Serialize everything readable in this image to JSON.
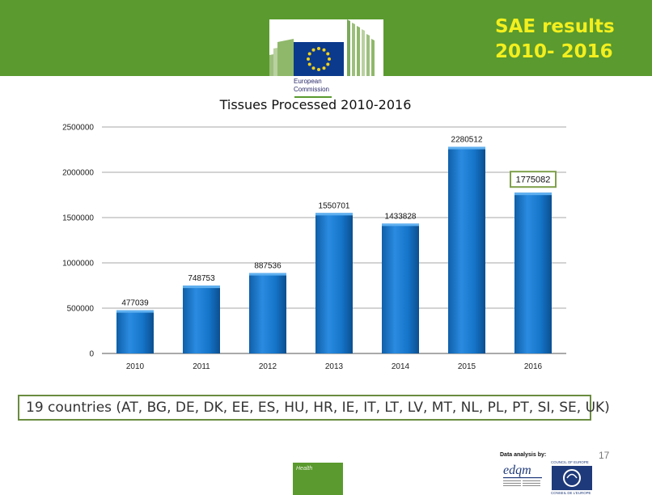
{
  "header": {
    "title_line1": "SAE results",
    "title_line2": "2010- 2016"
  },
  "logo": {
    "line1": "European",
    "line2": "Commission"
  },
  "chart_data": {
    "type": "bar",
    "title": "Tissues Processed  2010-2016",
    "categories": [
      "2010",
      "2011",
      "2012",
      "2013",
      "2014",
      "2015",
      "2016"
    ],
    "values": [
      477039,
      748753,
      887536,
      1550701,
      1433828,
      2280512,
      1775082
    ],
    "value_labels": [
      "477039",
      "748753",
      "887536",
      "1550701",
      "1433828",
      "2280512",
      "1775082"
    ],
    "ylim": [
      0,
      2500000
    ],
    "yticks": [
      "0",
      "500000",
      "1000000",
      "1500000",
      "2000000",
      "2500000"
    ],
    "grid": true,
    "legend": "none",
    "bar_color": "#1575c9",
    "highlighted_label_index": 6
  },
  "countries_text": "19 countries (AT, BG, DE, DK, EE, ES, HU, HR, IE, IT, LT, LV, MT, NL, PL, PT, SI, SE, UK)",
  "page_number": "17",
  "footer": {
    "health_label": "Health",
    "data_analysis": "Data analysis by:",
    "edqm_label": "edqm",
    "coe_label": "COUNCIL OF EUROPE",
    "coe_label_fr": "CONSEIL DE L'EUROPE"
  }
}
